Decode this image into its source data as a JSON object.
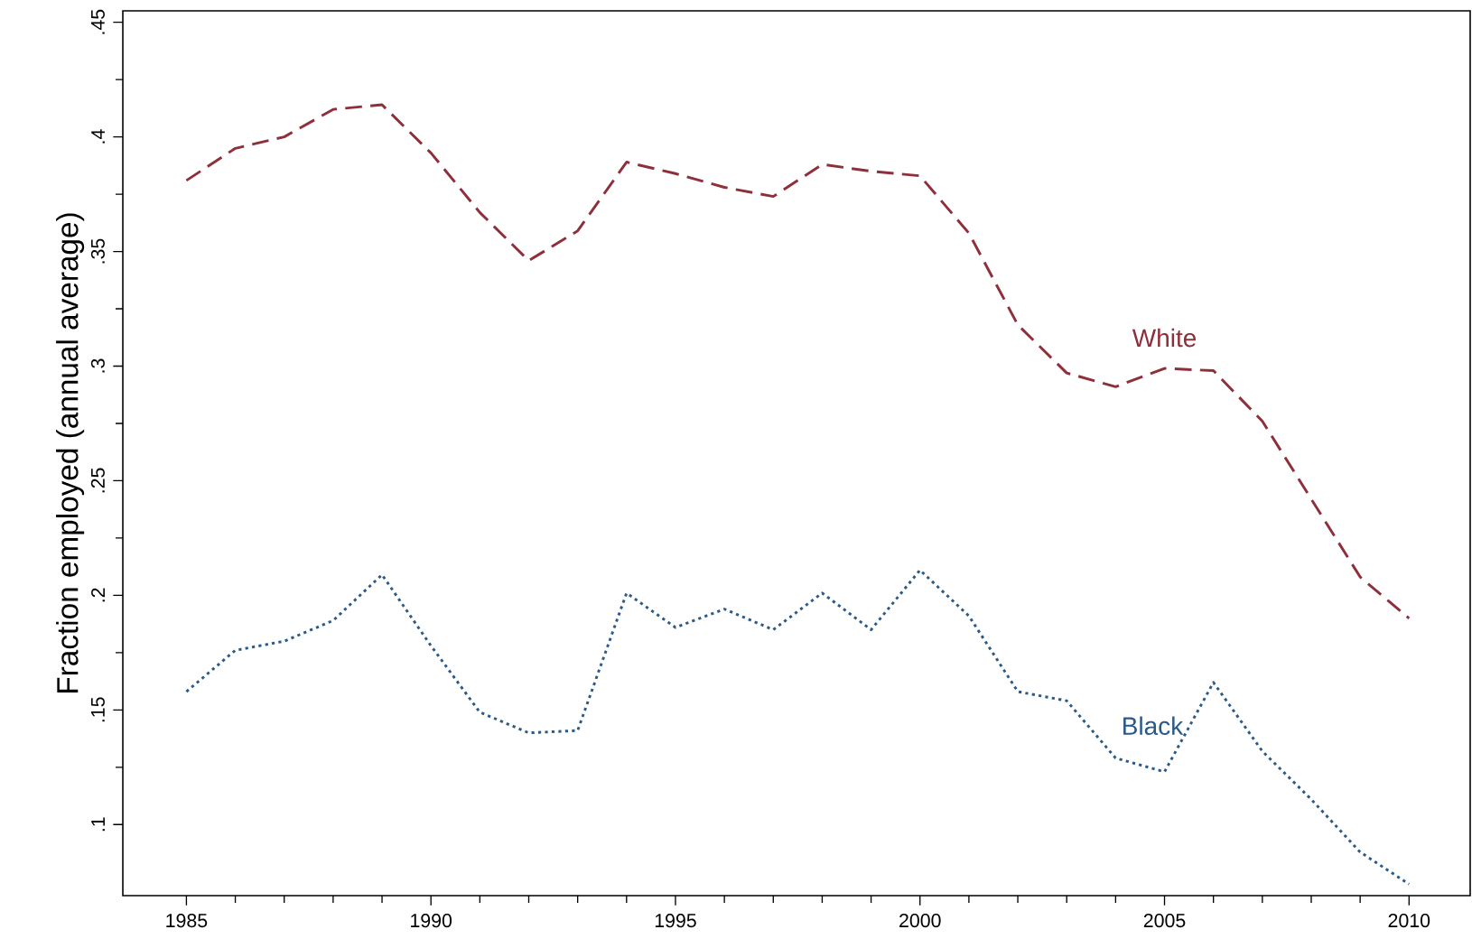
{
  "chart_data": {
    "type": "line",
    "ylabel": "Fraction employed (annual average)",
    "x": [
      1985,
      1986,
      1987,
      1988,
      1989,
      1990,
      1991,
      1992,
      1993,
      1994,
      1995,
      1996,
      1997,
      1998,
      1999,
      2000,
      2001,
      2002,
      2003,
      2004,
      2005,
      2006,
      2007,
      2008,
      2009,
      2010
    ],
    "xlim": [
      1983.7,
      2011.25
    ],
    "ylim": [
      0.069,
      0.455
    ],
    "xticks": [
      1985,
      1990,
      1995,
      2000,
      2005,
      2010
    ],
    "yticks": [
      {
        "value": 0.1,
        "label": ".1"
      },
      {
        "value": 0.15,
        "label": ".15"
      },
      {
        "value": 0.2,
        "label": ".2"
      },
      {
        "value": 0.25,
        "label": ".25"
      },
      {
        "value": 0.3,
        "label": ".3"
      },
      {
        "value": 0.35,
        "label": ".35"
      },
      {
        "value": 0.4,
        "label": ".4"
      },
      {
        "value": 0.45,
        "label": ".45"
      }
    ],
    "grid": false,
    "legend": false,
    "marker": "none",
    "series": [
      {
        "name": "White",
        "color": "#8e2f3c",
        "line_style": "dashed",
        "values": [
          0.381,
          0.395,
          0.4,
          0.412,
          0.414,
          0.393,
          0.367,
          0.346,
          0.359,
          0.389,
          0.384,
          0.378,
          0.374,
          0.388,
          0.385,
          0.383,
          0.358,
          0.318,
          0.297,
          0.291,
          0.299,
          0.298,
          0.276,
          0.242,
          0.208,
          0.19
        ]
      },
      {
        "name": "Black",
        "color": "#2b5a87",
        "line_style": "dotted",
        "values": [
          0.158,
          0.176,
          0.18,
          0.189,
          0.209,
          0.178,
          0.149,
          0.14,
          0.141,
          0.201,
          0.186,
          0.194,
          0.185,
          0.201,
          0.185,
          0.211,
          0.191,
          0.158,
          0.154,
          0.129,
          0.123,
          0.162,
          0.132,
          0.111,
          0.088,
          0.074
        ]
      }
    ]
  }
}
